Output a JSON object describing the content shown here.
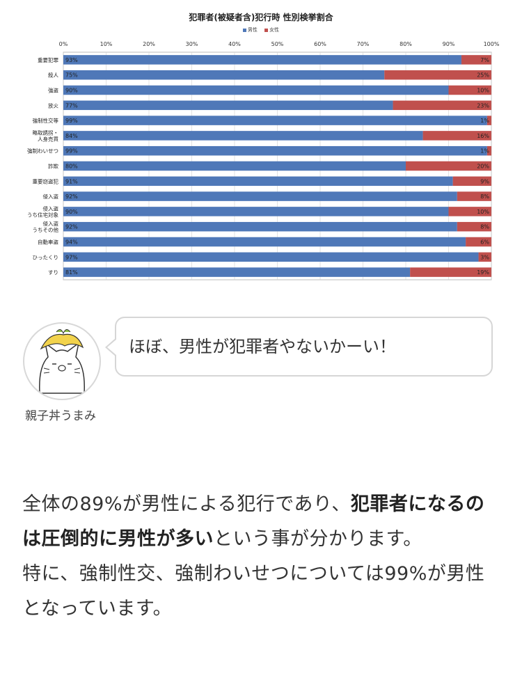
{
  "chart_data": {
    "type": "bar",
    "stacked": true,
    "orientation": "horizontal",
    "title": "犯罪者(被疑者含)犯行時 性別検挙割合",
    "legend": [
      "男性",
      "女性"
    ],
    "legend_position": "top",
    "x_ticks": [
      "0%",
      "10%",
      "20%",
      "30%",
      "40%",
      "50%",
      "60%",
      "70%",
      "80%",
      "90%",
      "100%"
    ],
    "xlim": [
      0,
      100
    ],
    "categories": [
      "重要犯罪",
      "殺人",
      "強盗",
      "放火",
      "強制性交等",
      "略取誘拐・人身売買",
      "強制わいせつ",
      "詐欺",
      "重要窃盗犯",
      "侵入盗",
      "侵入盗うち住宅対象",
      "侵入盗うちその他",
      "自動車盗",
      "ひったくり",
      "すり"
    ],
    "category_lines": [
      [
        "重要犯罪"
      ],
      [
        "殺人"
      ],
      [
        "強盗"
      ],
      [
        "放火"
      ],
      [
        "強制性交等"
      ],
      [
        "略取誘拐・",
        "人身売買"
      ],
      [
        "強制わいせつ"
      ],
      [
        "詐欺"
      ],
      [
        "重要窃盗犯"
      ],
      [
        "侵入盗"
      ],
      [
        "侵入盗",
        "うち住宅対象"
      ],
      [
        "侵入盗",
        "うちその他"
      ],
      [
        "自動車盗"
      ],
      [
        "ひったくり"
      ],
      [
        "すり"
      ]
    ],
    "series": [
      {
        "name": "男性",
        "color": "#4f78b8",
        "values": [
          93,
          75,
          90,
          77,
          99,
          84,
          99,
          80,
          91,
          92,
          90,
          92,
          94,
          97,
          81
        ],
        "labels": [
          "93%",
          "75%",
          "90%",
          "77%",
          "99%",
          "84%",
          "99%",
          "80%",
          "91%",
          "92%",
          "90%",
          "92%",
          "94%",
          "97%",
          "81%"
        ]
      },
      {
        "name": "女性",
        "color": "#c0504d",
        "values": [
          7,
          25,
          10,
          23,
          1,
          16,
          1,
          20,
          9,
          8,
          10,
          8,
          6,
          3,
          19
        ],
        "labels": [
          "7%",
          "25%",
          "10%",
          "23%",
          "1%",
          "16%",
          "1%",
          "20%",
          "9%",
          "8%",
          "10%",
          "8%",
          "6%",
          "3%",
          "19%"
        ]
      }
    ]
  },
  "comment": {
    "avatar_icon": "onion-cat-avatar-icon",
    "author": "親子丼うまみ",
    "text": "ほぼ、男性が犯罪者やないかーい！"
  },
  "article": {
    "p1_a": "全体の89%が男性による犯行であり、",
    "p1_bold": "犯罪者になるのは圧倒的に男性が多い",
    "p1_b": "という事が分かります。",
    "p2": "特に、強制性交、強制わいせつについては99%が男性となっています。"
  }
}
